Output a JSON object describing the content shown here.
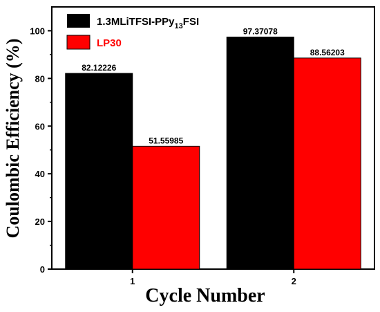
{
  "chart_data": {
    "type": "bar",
    "categories": [
      "1",
      "2"
    ],
    "series": [
      {
        "name": "1.3MLiTFSI-PPy13FSI",
        "legend_main": "1.3MLiTFSI-PPy",
        "legend_sub": "13",
        "legend_tail": "FSI",
        "color": "#000000",
        "values": [
          82.12226,
          97.37078
        ],
        "labels": [
          "82.12226",
          "97.37078"
        ]
      },
      {
        "name": "LP30",
        "color": "#ff0000",
        "values": [
          51.55985,
          88.56203
        ],
        "labels": [
          "51.55985",
          "88.56203"
        ]
      }
    ],
    "xlabel": "Cycle Number",
    "ylabel": "Coulombic Efficiency (%)",
    "ylim": [
      0,
      110
    ],
    "yticks": [
      "0",
      "20",
      "40",
      "60",
      "80",
      "100"
    ],
    "legend_position": "top-left",
    "grid": false
  }
}
